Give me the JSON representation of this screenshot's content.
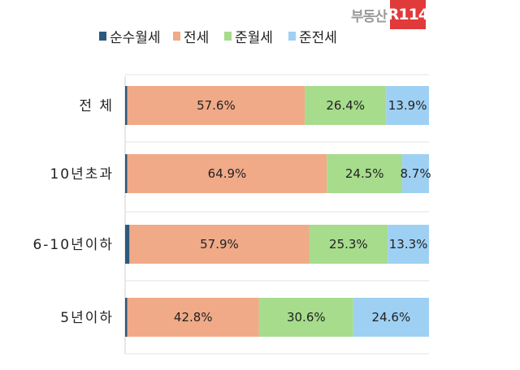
{
  "chart_data": {
    "type": "bar",
    "orientation": "horizontal",
    "stacked": true,
    "percent": true,
    "categories": [
      "전 체",
      "10년초과",
      "6-10년이하",
      "5년이하"
    ],
    "series": [
      {
        "name": "순수월세",
        "color": "#2b5a7e",
        "values": [
          0.7,
          0.7,
          1.4,
          0.7
        ],
        "labels": [
          "",
          "",
          "",
          ""
        ]
      },
      {
        "name": "전세",
        "color": "#f0aa88",
        "values": [
          57.6,
          64.9,
          57.9,
          42.8
        ],
        "labels": [
          "57.6%",
          "64.9%",
          "57.9%",
          "42.8%"
        ]
      },
      {
        "name": "준월세",
        "color": "#a6dc8c",
        "values": [
          26.4,
          24.5,
          25.3,
          30.6
        ],
        "labels": [
          "26.4%",
          "24.5%",
          "25.3%",
          "30.6%"
        ]
      },
      {
        "name": "준전세",
        "color": "#9ed0f3",
        "values": [
          13.9,
          8.7,
          13.3,
          24.6
        ],
        "labels": [
          "13.9%",
          "8.7%",
          "13.3%",
          "24.6%"
        ]
      }
    ],
    "xlim": [
      0,
      100
    ],
    "grid": false,
    "legend_position": "top"
  },
  "brand": {
    "text": "부동산",
    "mark": "R114"
  }
}
